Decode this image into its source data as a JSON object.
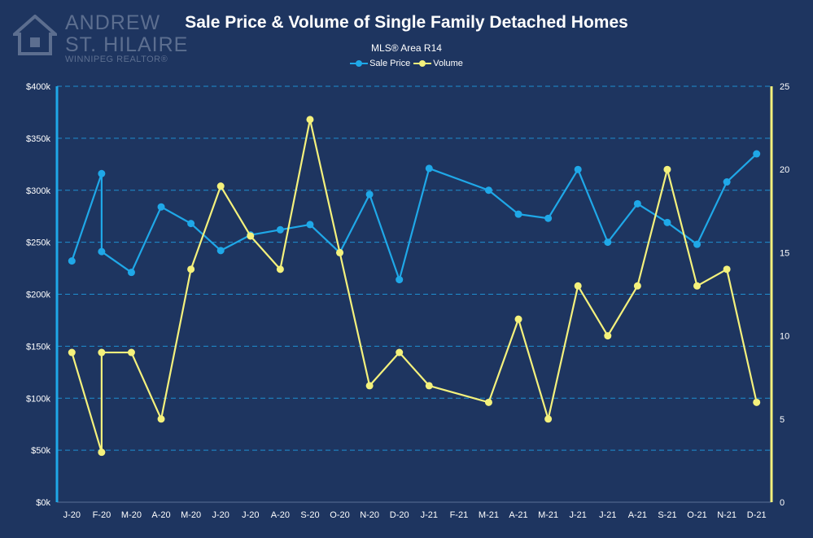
{
  "logo": {
    "line1": "ANDREW",
    "line2": "ST. HILAIRE",
    "line3": "WINNIPEG REALTOR®"
  },
  "colors": {
    "background": "#1e3560",
    "sale_price": "#1fa8e8",
    "volume": "#f4f17c",
    "gridline": "#1f8fd0",
    "text": "#ffffff"
  },
  "chart_data": {
    "type": "line",
    "title": "Sale Price & Volume of Single Family Detached Homes",
    "subtitle": "MLS® Area R14",
    "legend_position": "top",
    "grid": true,
    "categories": [
      "J-20",
      "F-20",
      "M-20",
      "A-20",
      "M-20",
      "J-20",
      "J-20",
      "A-20",
      "S-20",
      "O-20",
      "N-20",
      "D-20",
      "J-21",
      "F-21",
      "M-21",
      "A-21",
      "M-21",
      "J-21",
      "J-21",
      "A-21",
      "S-21",
      "O-21",
      "N-21",
      "D-21"
    ],
    "y_left": {
      "range": [
        0,
        400000
      ],
      "ticks": [
        0,
        50000,
        100000,
        150000,
        200000,
        250000,
        300000,
        350000,
        400000
      ],
      "tick_labels": [
        "$0k",
        "$50k",
        "$100k",
        "$150k",
        "$200k",
        "$250k",
        "$300k",
        "$350k",
        "$400k"
      ]
    },
    "y_right": {
      "range": [
        0,
        25
      ],
      "ticks": [
        0,
        5,
        10,
        15,
        20,
        25
      ],
      "tick_labels": [
        "0",
        "5",
        "10",
        "15",
        "20",
        "25"
      ]
    },
    "series": [
      {
        "name": "Sale Price",
        "axis": "left",
        "points": [
          {
            "x": 0,
            "y": 232000
          },
          {
            "x": 1,
            "y": 316000
          },
          {
            "x": 1,
            "y": 241000
          },
          {
            "x": 2,
            "y": 221000
          },
          {
            "x": 3,
            "y": 284000
          },
          {
            "x": 4,
            "y": 268000
          },
          {
            "x": 5,
            "y": 242000
          },
          {
            "x": 6,
            "y": 257000
          },
          {
            "x": 7,
            "y": 262000
          },
          {
            "x": 8,
            "y": 267000
          },
          {
            "x": 9,
            "y": 240000
          },
          {
            "x": 10,
            "y": 296000
          },
          {
            "x": 11,
            "y": 214000
          },
          {
            "x": 12,
            "y": 321000
          },
          {
            "x": 14,
            "y": 300000
          },
          {
            "x": 15,
            "y": 277000
          },
          {
            "x": 16,
            "y": 273000
          },
          {
            "x": 17,
            "y": 320000
          },
          {
            "x": 18,
            "y": 250000
          },
          {
            "x": 19,
            "y": 287000
          },
          {
            "x": 20,
            "y": 269000
          },
          {
            "x": 21,
            "y": 248000
          },
          {
            "x": 22,
            "y": 308000
          },
          {
            "x": 23,
            "y": 335000
          }
        ]
      },
      {
        "name": "Volume",
        "axis": "right",
        "points": [
          {
            "x": 0,
            "y": 9
          },
          {
            "x": 1,
            "y": 3
          },
          {
            "x": 1,
            "y": 9
          },
          {
            "x": 2,
            "y": 9
          },
          {
            "x": 3,
            "y": 5
          },
          {
            "x": 4,
            "y": 14
          },
          {
            "x": 5,
            "y": 19
          },
          {
            "x": 6,
            "y": 16
          },
          {
            "x": 7,
            "y": 14
          },
          {
            "x": 8,
            "y": 23
          },
          {
            "x": 9,
            "y": 15
          },
          {
            "x": 10,
            "y": 7
          },
          {
            "x": 11,
            "y": 9
          },
          {
            "x": 12,
            "y": 7
          },
          {
            "x": 14,
            "y": 6
          },
          {
            "x": 15,
            "y": 11
          },
          {
            "x": 16,
            "y": 5
          },
          {
            "x": 17,
            "y": 13
          },
          {
            "x": 18,
            "y": 10
          },
          {
            "x": 19,
            "y": 13
          },
          {
            "x": 20,
            "y": 20
          },
          {
            "x": 21,
            "y": 13
          },
          {
            "x": 22,
            "y": 14
          },
          {
            "x": 23,
            "y": 6
          }
        ]
      }
    ]
  }
}
